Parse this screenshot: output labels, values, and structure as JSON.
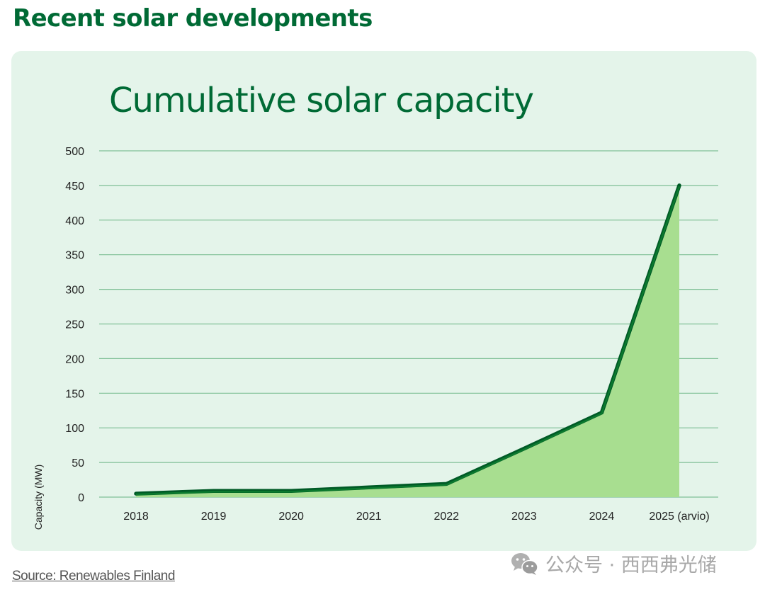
{
  "page": {
    "heading": "Recent solar developments",
    "source": "Source: Renewables Finland",
    "watermark": "公众号 · 西西弗光储",
    "watermark_icon": "wechat-icon"
  },
  "colors": {
    "brand_green": "#006a35",
    "line_green": "#0b7a2e",
    "line_dark": "#005a26",
    "area_fill": "#a8de90",
    "grid": "#7fbf96",
    "card_bg": "#e4f4ea"
  },
  "chart_data": {
    "type": "area",
    "title": "Cumulative solar capacity",
    "xlabel": "",
    "ylabel": "Capacity (MW)",
    "categories": [
      "2018",
      "2019",
      "2020",
      "2021",
      "2022",
      "2023",
      "2024",
      "2025 (arvio)"
    ],
    "series": [
      {
        "name": "Cumulative solar capacity",
        "values": [
          5,
          9,
          9,
          14,
          19,
          70,
          122,
          450
        ]
      }
    ],
    "ylim": [
      0,
      500
    ],
    "yticks": [
      0,
      50,
      100,
      150,
      200,
      250,
      300,
      350,
      400,
      450,
      500
    ],
    "grid": true,
    "legend": "none"
  }
}
